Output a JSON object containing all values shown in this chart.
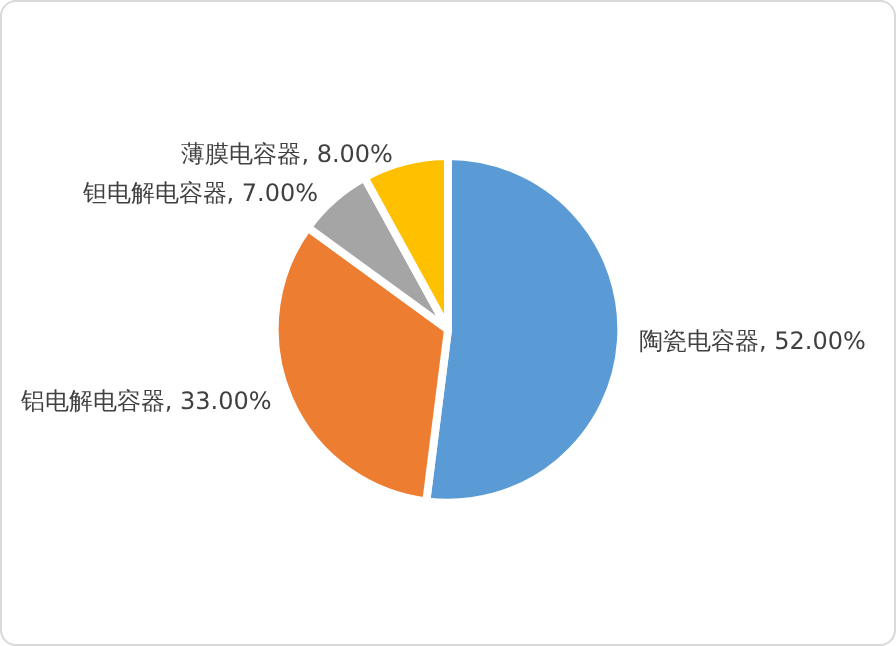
{
  "chart_data": {
    "type": "pie",
    "categories": [
      "陶瓷电容器",
      "铝电解电容器",
      "钽电解电容器",
      "薄膜电容器"
    ],
    "values": [
      52,
      33,
      7,
      8
    ],
    "colors": [
      "#5b9bd5",
      "#ed7d31",
      "#a5a5a5",
      "#ffc000"
    ],
    "value_labels": [
      "52.00%",
      "33.00%",
      "7.00%",
      "8.00%"
    ],
    "legend": false
  }
}
